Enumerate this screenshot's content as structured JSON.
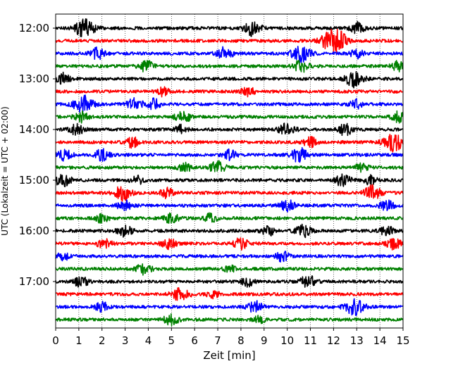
{
  "chart_data": {
    "type": "line",
    "title": "",
    "xlabel": "Zeit  [min]",
    "ylabel": "UTC (Lokalzeit = UTC + 02:00)",
    "xlim": [
      0,
      15
    ],
    "x_ticks": [
      "0",
      "1",
      "2",
      "3",
      "4",
      "5",
      "6",
      "7",
      "8",
      "9",
      "10",
      "11",
      "12",
      "13",
      "14",
      "15"
    ],
    "y_ticks": [
      "12:00",
      "13:00",
      "14:00",
      "15:00",
      "16:00",
      "17:00"
    ],
    "grid": "vertical dotted lines at each minute",
    "trace_interval_min": 15,
    "first_trace_time": "12:00",
    "last_trace_time": "17:45",
    "color_cycle": [
      "#000000",
      "#ff0000",
      "#0000ff",
      "#008000"
    ],
    "series": [
      {
        "time": "12:00",
        "color": "#000000",
        "events": [
          {
            "x": 1.25,
            "amp": 1.6
          },
          {
            "x": 8.5,
            "amp": 1.3
          },
          {
            "x": 13.0,
            "amp": 1.0
          }
        ]
      },
      {
        "time": "12:15",
        "color": "#ff0000",
        "events": [
          {
            "x": 11.9,
            "amp": 1.8
          },
          {
            "x": 12.3,
            "amp": 1.0
          }
        ]
      },
      {
        "time": "12:30",
        "color": "#0000ff",
        "events": [
          {
            "x": 1.8,
            "amp": 1.0
          },
          {
            "x": 7.3,
            "amp": 1.1
          },
          {
            "x": 10.6,
            "amp": 1.5
          },
          {
            "x": 13.0,
            "amp": 0.8
          }
        ]
      },
      {
        "time": "12:45",
        "color": "#008000",
        "events": [
          {
            "x": 3.9,
            "amp": 1.0
          },
          {
            "x": 10.6,
            "amp": 1.1
          },
          {
            "x": 14.8,
            "amp": 0.9
          }
        ]
      },
      {
        "time": "13:00",
        "color": "#000000",
        "events": [
          {
            "x": 0.3,
            "amp": 1.0
          },
          {
            "x": 12.9,
            "amp": 1.5
          }
        ]
      },
      {
        "time": "13:15",
        "color": "#ff0000",
        "events": [
          {
            "x": 4.6,
            "amp": 0.8
          },
          {
            "x": 8.3,
            "amp": 0.9
          }
        ]
      },
      {
        "time": "13:30",
        "color": "#0000ff",
        "events": [
          {
            "x": 1.2,
            "amp": 1.6
          },
          {
            "x": 3.4,
            "amp": 1.0
          },
          {
            "x": 4.2,
            "amp": 1.0
          },
          {
            "x": 13.0,
            "amp": 0.8
          }
        ]
      },
      {
        "time": "13:45",
        "color": "#008000",
        "events": [
          {
            "x": 1.1,
            "amp": 0.9
          },
          {
            "x": 5.5,
            "amp": 1.1
          },
          {
            "x": 14.8,
            "amp": 0.9
          }
        ]
      },
      {
        "time": "14:00",
        "color": "#000000",
        "events": [
          {
            "x": 0.9,
            "amp": 1.0
          },
          {
            "x": 5.4,
            "amp": 0.8
          },
          {
            "x": 10.0,
            "amp": 1.2
          },
          {
            "x": 12.5,
            "amp": 1.0
          }
        ]
      },
      {
        "time": "14:15",
        "color": "#ff0000",
        "events": [
          {
            "x": 3.3,
            "amp": 0.9
          },
          {
            "x": 11.0,
            "amp": 0.9
          },
          {
            "x": 14.6,
            "amp": 1.6
          }
        ]
      },
      {
        "time": "14:30",
        "color": "#0000ff",
        "events": [
          {
            "x": 0.4,
            "amp": 1.0
          },
          {
            "x": 2.0,
            "amp": 1.0
          },
          {
            "x": 7.5,
            "amp": 0.9
          },
          {
            "x": 10.5,
            "amp": 1.3
          }
        ]
      },
      {
        "time": "14:45",
        "color": "#008000",
        "events": [
          {
            "x": 5.6,
            "amp": 0.8
          },
          {
            "x": 7.0,
            "amp": 1.1
          },
          {
            "x": 13.2,
            "amp": 0.8
          }
        ]
      },
      {
        "time": "15:00",
        "color": "#000000",
        "events": [
          {
            "x": 0.3,
            "amp": 1.2
          },
          {
            "x": 3.5,
            "amp": 0.8
          },
          {
            "x": 12.4,
            "amp": 1.1
          },
          {
            "x": 13.6,
            "amp": 0.8
          }
        ]
      },
      {
        "time": "15:15",
        "color": "#ff0000",
        "events": [
          {
            "x": 2.9,
            "amp": 1.3
          },
          {
            "x": 4.8,
            "amp": 0.9
          },
          {
            "x": 13.7,
            "amp": 1.3
          }
        ]
      },
      {
        "time": "15:30",
        "color": "#0000ff",
        "events": [
          {
            "x": 3.0,
            "amp": 1.0
          },
          {
            "x": 10.0,
            "amp": 1.0
          },
          {
            "x": 14.3,
            "amp": 0.9
          }
        ]
      },
      {
        "time": "15:45",
        "color": "#008000",
        "events": [
          {
            "x": 2.0,
            "amp": 0.8
          },
          {
            "x": 5.0,
            "amp": 0.9
          },
          {
            "x": 6.7,
            "amp": 0.8
          }
        ]
      },
      {
        "time": "16:00",
        "color": "#000000",
        "events": [
          {
            "x": 3.0,
            "amp": 1.0
          },
          {
            "x": 9.2,
            "amp": 0.9
          },
          {
            "x": 10.7,
            "amp": 1.1
          },
          {
            "x": 14.3,
            "amp": 0.9
          }
        ]
      },
      {
        "time": "16:15",
        "color": "#ff0000",
        "events": [
          {
            "x": 2.1,
            "amp": 0.9
          },
          {
            "x": 4.9,
            "amp": 1.0
          },
          {
            "x": 8.0,
            "amp": 1.0
          },
          {
            "x": 14.6,
            "amp": 1.0
          }
        ]
      },
      {
        "time": "16:30",
        "color": "#0000ff",
        "events": [
          {
            "x": 0.3,
            "amp": 0.8
          },
          {
            "x": 9.8,
            "amp": 0.9
          }
        ]
      },
      {
        "time": "16:45",
        "color": "#008000",
        "events": [
          {
            "x": 3.8,
            "amp": 1.0
          },
          {
            "x": 7.5,
            "amp": 0.7
          }
        ]
      },
      {
        "time": "17:00",
        "color": "#000000",
        "events": [
          {
            "x": 1.1,
            "amp": 1.0
          },
          {
            "x": 8.3,
            "amp": 0.8
          },
          {
            "x": 10.9,
            "amp": 1.1
          }
        ]
      },
      {
        "time": "17:15",
        "color": "#ff0000",
        "events": [
          {
            "x": 5.4,
            "amp": 1.3
          },
          {
            "x": 6.8,
            "amp": 0.7
          }
        ]
      },
      {
        "time": "17:30",
        "color": "#0000ff",
        "events": [
          {
            "x": 2.0,
            "amp": 0.9
          },
          {
            "x": 8.6,
            "amp": 1.0
          },
          {
            "x": 12.9,
            "amp": 1.5
          }
        ]
      },
      {
        "time": "17:45",
        "color": "#008000",
        "events": [
          {
            "x": 5.0,
            "amp": 1.0
          },
          {
            "x": 8.8,
            "amp": 0.7
          }
        ]
      }
    ]
  }
}
